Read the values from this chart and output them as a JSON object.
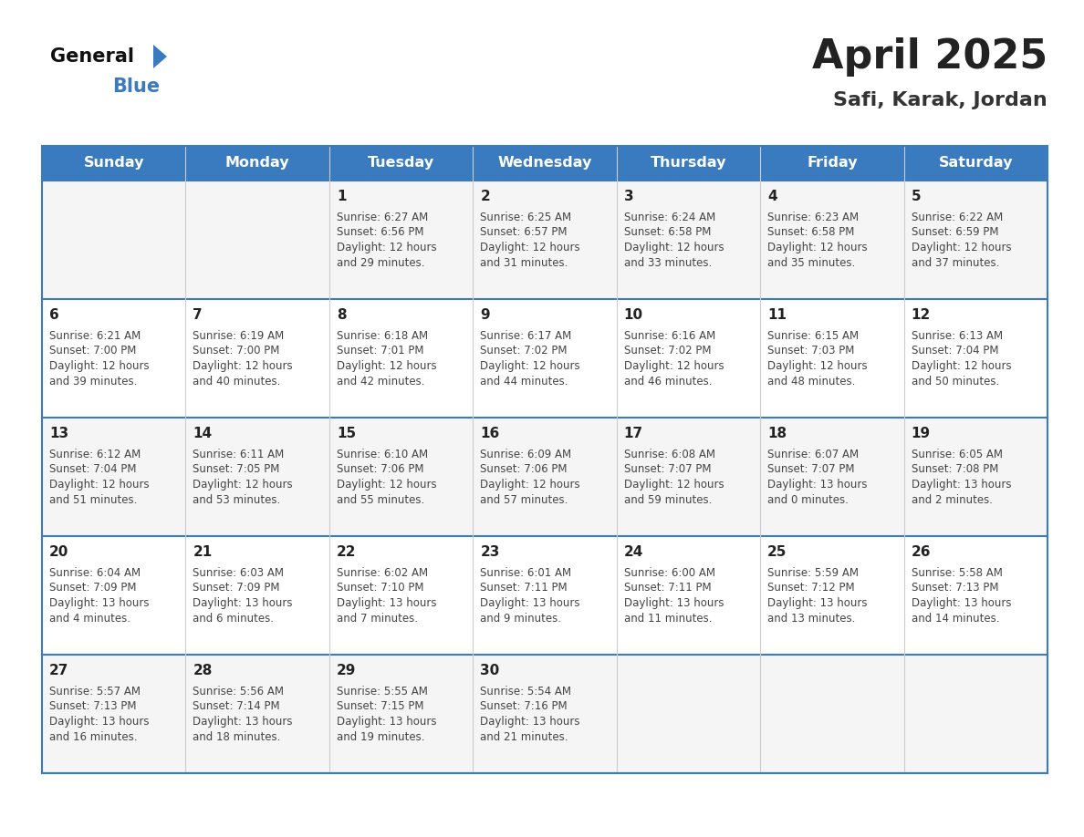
{
  "title": "April 2025",
  "subtitle": "Safi, Karak, Jordan",
  "header_color": "#3a7abf",
  "header_text_color": "#ffffff",
  "cell_bg_even": "#f5f5f5",
  "cell_bg_odd": "#ffffff",
  "border_color": "#3a7abf",
  "grid_color": "#cccccc",
  "day_headers": [
    "Sunday",
    "Monday",
    "Tuesday",
    "Wednesday",
    "Thursday",
    "Friday",
    "Saturday"
  ],
  "title_color": "#222222",
  "subtitle_color": "#333333",
  "day_number_color": "#222222",
  "cell_text_color": "#444444",
  "calendar_data": [
    [
      {
        "day": null,
        "sunrise": null,
        "sunset": null,
        "daylight_l1": null,
        "daylight_l2": null
      },
      {
        "day": null,
        "sunrise": null,
        "sunset": null,
        "daylight_l1": null,
        "daylight_l2": null
      },
      {
        "day": 1,
        "sunrise": "6:27 AM",
        "sunset": "6:56 PM",
        "daylight_l1": "12 hours",
        "daylight_l2": "and 29 minutes."
      },
      {
        "day": 2,
        "sunrise": "6:25 AM",
        "sunset": "6:57 PM",
        "daylight_l1": "12 hours",
        "daylight_l2": "and 31 minutes."
      },
      {
        "day": 3,
        "sunrise": "6:24 AM",
        "sunset": "6:58 PM",
        "daylight_l1": "12 hours",
        "daylight_l2": "and 33 minutes."
      },
      {
        "day": 4,
        "sunrise": "6:23 AM",
        "sunset": "6:58 PM",
        "daylight_l1": "12 hours",
        "daylight_l2": "and 35 minutes."
      },
      {
        "day": 5,
        "sunrise": "6:22 AM",
        "sunset": "6:59 PM",
        "daylight_l1": "12 hours",
        "daylight_l2": "and 37 minutes."
      }
    ],
    [
      {
        "day": 6,
        "sunrise": "6:21 AM",
        "sunset": "7:00 PM",
        "daylight_l1": "12 hours",
        "daylight_l2": "and 39 minutes."
      },
      {
        "day": 7,
        "sunrise": "6:19 AM",
        "sunset": "7:00 PM",
        "daylight_l1": "12 hours",
        "daylight_l2": "and 40 minutes."
      },
      {
        "day": 8,
        "sunrise": "6:18 AM",
        "sunset": "7:01 PM",
        "daylight_l1": "12 hours",
        "daylight_l2": "and 42 minutes."
      },
      {
        "day": 9,
        "sunrise": "6:17 AM",
        "sunset": "7:02 PM",
        "daylight_l1": "12 hours",
        "daylight_l2": "and 44 minutes."
      },
      {
        "day": 10,
        "sunrise": "6:16 AM",
        "sunset": "7:02 PM",
        "daylight_l1": "12 hours",
        "daylight_l2": "and 46 minutes."
      },
      {
        "day": 11,
        "sunrise": "6:15 AM",
        "sunset": "7:03 PM",
        "daylight_l1": "12 hours",
        "daylight_l2": "and 48 minutes."
      },
      {
        "day": 12,
        "sunrise": "6:13 AM",
        "sunset": "7:04 PM",
        "daylight_l1": "12 hours",
        "daylight_l2": "and 50 minutes."
      }
    ],
    [
      {
        "day": 13,
        "sunrise": "6:12 AM",
        "sunset": "7:04 PM",
        "daylight_l1": "12 hours",
        "daylight_l2": "and 51 minutes."
      },
      {
        "day": 14,
        "sunrise": "6:11 AM",
        "sunset": "7:05 PM",
        "daylight_l1": "12 hours",
        "daylight_l2": "and 53 minutes."
      },
      {
        "day": 15,
        "sunrise": "6:10 AM",
        "sunset": "7:06 PM",
        "daylight_l1": "12 hours",
        "daylight_l2": "and 55 minutes."
      },
      {
        "day": 16,
        "sunrise": "6:09 AM",
        "sunset": "7:06 PM",
        "daylight_l1": "12 hours",
        "daylight_l2": "and 57 minutes."
      },
      {
        "day": 17,
        "sunrise": "6:08 AM",
        "sunset": "7:07 PM",
        "daylight_l1": "12 hours",
        "daylight_l2": "and 59 minutes."
      },
      {
        "day": 18,
        "sunrise": "6:07 AM",
        "sunset": "7:07 PM",
        "daylight_l1": "13 hours",
        "daylight_l2": "and 0 minutes."
      },
      {
        "day": 19,
        "sunrise": "6:05 AM",
        "sunset": "7:08 PM",
        "daylight_l1": "13 hours",
        "daylight_l2": "and 2 minutes."
      }
    ],
    [
      {
        "day": 20,
        "sunrise": "6:04 AM",
        "sunset": "7:09 PM",
        "daylight_l1": "13 hours",
        "daylight_l2": "and 4 minutes."
      },
      {
        "day": 21,
        "sunrise": "6:03 AM",
        "sunset": "7:09 PM",
        "daylight_l1": "13 hours",
        "daylight_l2": "and 6 minutes."
      },
      {
        "day": 22,
        "sunrise": "6:02 AM",
        "sunset": "7:10 PM",
        "daylight_l1": "13 hours",
        "daylight_l2": "and 7 minutes."
      },
      {
        "day": 23,
        "sunrise": "6:01 AM",
        "sunset": "7:11 PM",
        "daylight_l1": "13 hours",
        "daylight_l2": "and 9 minutes."
      },
      {
        "day": 24,
        "sunrise": "6:00 AM",
        "sunset": "7:11 PM",
        "daylight_l1": "13 hours",
        "daylight_l2": "and 11 minutes."
      },
      {
        "day": 25,
        "sunrise": "5:59 AM",
        "sunset": "7:12 PM",
        "daylight_l1": "13 hours",
        "daylight_l2": "and 13 minutes."
      },
      {
        "day": 26,
        "sunrise": "5:58 AM",
        "sunset": "7:13 PM",
        "daylight_l1": "13 hours",
        "daylight_l2": "and 14 minutes."
      }
    ],
    [
      {
        "day": 27,
        "sunrise": "5:57 AM",
        "sunset": "7:13 PM",
        "daylight_l1": "13 hours",
        "daylight_l2": "and 16 minutes."
      },
      {
        "day": 28,
        "sunrise": "5:56 AM",
        "sunset": "7:14 PM",
        "daylight_l1": "13 hours",
        "daylight_l2": "and 18 minutes."
      },
      {
        "day": 29,
        "sunrise": "5:55 AM",
        "sunset": "7:15 PM",
        "daylight_l1": "13 hours",
        "daylight_l2": "and 19 minutes."
      },
      {
        "day": 30,
        "sunrise": "5:54 AM",
        "sunset": "7:16 PM",
        "daylight_l1": "13 hours",
        "daylight_l2": "and 21 minutes."
      },
      {
        "day": null,
        "sunrise": null,
        "sunset": null,
        "daylight_l1": null,
        "daylight_l2": null
      },
      {
        "day": null,
        "sunrise": null,
        "sunset": null,
        "daylight_l1": null,
        "daylight_l2": null
      },
      {
        "day": null,
        "sunrise": null,
        "sunset": null,
        "daylight_l1": null,
        "daylight_l2": null
      }
    ]
  ]
}
